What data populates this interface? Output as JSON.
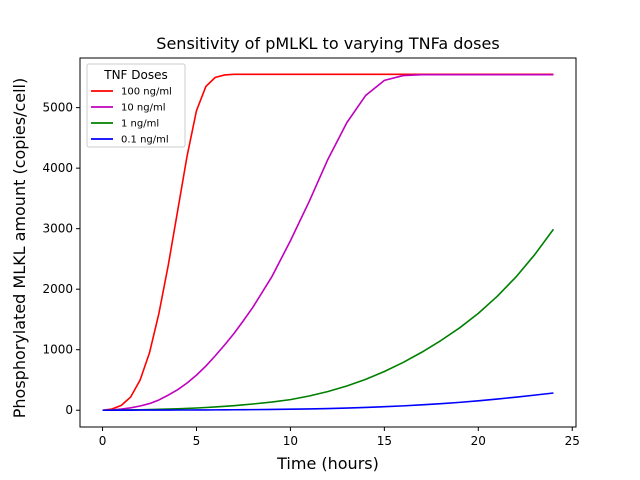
{
  "chart_data": {
    "type": "line",
    "title": "Sensitivity of pMLKL to varying TNFa doses",
    "xlabel": "Time (hours)",
    "ylabel": "Phosphorylated MLKL amount (copies/cell)",
    "xlim": [
      -1.2,
      25.2
    ],
    "ylim": [
      -277,
      5820
    ],
    "xticks": [
      0,
      5,
      10,
      15,
      20,
      25
    ],
    "xtick_labels": [
      "0",
      "5",
      "10",
      "15",
      "20",
      "25"
    ],
    "yticks": [
      0,
      1000,
      2000,
      3000,
      4000,
      5000
    ],
    "ytick_labels": [
      "0",
      "1000",
      "2000",
      "3000",
      "4000",
      "5000"
    ],
    "grid": false,
    "legend": {
      "title": "TNF Doses",
      "position": "top-left"
    },
    "x": [
      0,
      0.5,
      1,
      1.5,
      2,
      2.5,
      3,
      3.5,
      4,
      4.5,
      5,
      5.5,
      6,
      6.5,
      7,
      7.5,
      8,
      9,
      10,
      11,
      12,
      13,
      14,
      15,
      16,
      17,
      18,
      19,
      20,
      21,
      22,
      23,
      24
    ],
    "series": [
      {
        "name": "100 ng/ml",
        "color": "#ff0000",
        "values": [
          0,
          20,
          80,
          220,
          500,
          950,
          1600,
          2400,
          3300,
          4200,
          4950,
          5350,
          5500,
          5540,
          5550,
          5550,
          5550,
          5550,
          5550,
          5550,
          5550,
          5550,
          5550,
          5550,
          5550,
          5550,
          5550,
          5550,
          5550,
          5550,
          5550,
          5550,
          5550
        ]
      },
      {
        "name": "10 ng/ml",
        "color": "#bf00bf",
        "values": [
          0,
          5,
          20,
          40,
          70,
          110,
          170,
          250,
          340,
          450,
          580,
          730,
          900,
          1080,
          1270,
          1480,
          1700,
          2200,
          2800,
          3450,
          4150,
          4750,
          5200,
          5450,
          5530,
          5545,
          5545,
          5545,
          5545,
          5545,
          5545,
          5545,
          5545
        ]
      },
      {
        "name": "1 ng/ml",
        "color": "#008000",
        "values": [
          0,
          1,
          3,
          5,
          8,
          11,
          15,
          19,
          24,
          30,
          37,
          45,
          54,
          64,
          76,
          89,
          103,
          135,
          175,
          235,
          310,
          400,
          510,
          640,
          790,
          960,
          1150,
          1360,
          1600,
          1880,
          2200,
          2570,
          2990
        ]
      },
      {
        "name": "0.1 ng/ml",
        "color": "#0000ff",
        "values": [
          0,
          0,
          1,
          1,
          2,
          2,
          3,
          3,
          4,
          4,
          5,
          5,
          6,
          7,
          8,
          9,
          10,
          13,
          17,
          22,
          28,
          36,
          46,
          58,
          72,
          89,
          108,
          130,
          155,
          184,
          216,
          250,
          285
        ]
      }
    ]
  }
}
